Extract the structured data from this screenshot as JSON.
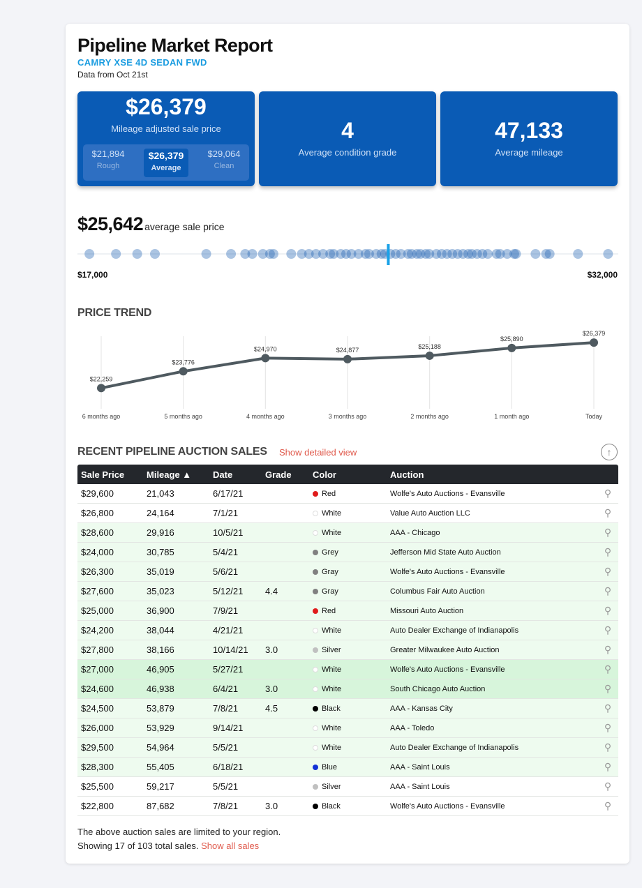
{
  "report": {
    "title": "Pipeline Market Report",
    "subtitle": "CAMRY XSE 4D SEDAN FWD",
    "data_from": "Data from Oct 21st"
  },
  "kpis": {
    "sale_price": "$26,379",
    "sale_price_label": "Mileage adjusted sale price",
    "range": [
      {
        "value": "$21,894",
        "label": "Rough"
      },
      {
        "value": "$26,379",
        "label": "Average"
      },
      {
        "value": "$29,064",
        "label": "Clean"
      }
    ],
    "condition": "4",
    "condition_label": "Average condition grade",
    "mileage": "47,133",
    "mileage_label": "Average mileage"
  },
  "distribution": {
    "avg_price": "$25,642",
    "avg_label": "average sale price",
    "min_label": "$17,000",
    "max_label": "$32,000",
    "min": 17000,
    "max": 32000,
    "average": 25642,
    "points": [
      17200,
      17950,
      18550,
      19050,
      20500,
      21200,
      21600,
      21800,
      22100,
      22300,
      22400,
      22900,
      23200,
      23400,
      23600,
      23800,
      24000,
      24100,
      24300,
      24450,
      24600,
      24800,
      25000,
      25100,
      25300,
      25450,
      25550,
      25700,
      25850,
      26000,
      26200,
      26300,
      26450,
      26550,
      26700,
      26800,
      27000,
      27150,
      27300,
      27450,
      27600,
      27750,
      27900,
      28000,
      28150,
      28300,
      28450,
      28700,
      28800,
      29000,
      29200,
      29250,
      29800,
      30100,
      30200,
      31000,
      31850
    ]
  },
  "trend": {
    "heading": "PRICE TREND",
    "chart_data": {
      "type": "line",
      "categories": [
        "6 months ago",
        "5 months ago",
        "4 months ago",
        "3 months ago",
        "2 months ago",
        "1 month ago",
        "Today"
      ],
      "values": [
        22259,
        23776,
        24970,
        24877,
        25188,
        25890,
        26379
      ],
      "labels": [
        "$22,259",
        "$23,776",
        "$24,970",
        "$24,877",
        "$25,188",
        "$25,890",
        "$26,379"
      ]
    }
  },
  "sales": {
    "heading": "RECENT PIPELINE AUCTION SALES",
    "detail_link": "Show detailed view",
    "columns": [
      "Sale Price",
      "Mileage ▲",
      "Date",
      "Grade",
      "Color",
      "Auction"
    ],
    "rows": [
      {
        "price": "$29,600",
        "mileage": "21,043",
        "date": "6/17/21",
        "grade": "",
        "color": "Red",
        "hex": "#e01b1b",
        "auction": "Wolfe's Auto Auctions - Evansville",
        "hl": ""
      },
      {
        "price": "$26,800",
        "mileage": "24,164",
        "date": "7/1/21",
        "grade": "",
        "color": "White",
        "hex": "#ffffff",
        "auction": "Value Auto Auction LLC",
        "hl": ""
      },
      {
        "price": "$28,600",
        "mileage": "29,916",
        "date": "10/5/21",
        "grade": "",
        "color": "White",
        "hex": "#ffffff",
        "auction": "AAA - Chicago",
        "hl": "g1"
      },
      {
        "price": "$24,000",
        "mileage": "30,785",
        "date": "5/4/21",
        "grade": "",
        "color": "Grey",
        "hex": "#808080",
        "auction": "Jefferson Mid State Auto Auction",
        "hl": "g1"
      },
      {
        "price": "$26,300",
        "mileage": "35,019",
        "date": "5/6/21",
        "grade": "",
        "color": "Gray",
        "hex": "#808080",
        "auction": "Wolfe's Auto Auctions - Evansville",
        "hl": "g1"
      },
      {
        "price": "$27,600",
        "mileage": "35,023",
        "date": "5/12/21",
        "grade": "4.4",
        "color": "Gray",
        "hex": "#808080",
        "auction": "Columbus Fair Auto Auction",
        "hl": "g1"
      },
      {
        "price": "$25,000",
        "mileage": "36,900",
        "date": "7/9/21",
        "grade": "",
        "color": "Red",
        "hex": "#e01b1b",
        "auction": "Missouri Auto Auction",
        "hl": "g1"
      },
      {
        "price": "$24,200",
        "mileage": "38,044",
        "date": "4/21/21",
        "grade": "",
        "color": "White",
        "hex": "#ffffff",
        "auction": "Auto Dealer Exchange of Indianapolis",
        "hl": "g1"
      },
      {
        "price": "$27,800",
        "mileage": "38,166",
        "date": "10/14/21",
        "grade": "3.0",
        "color": "Silver",
        "hex": "#c0c0c0",
        "auction": "Greater Milwaukee Auto Auction",
        "hl": "g1"
      },
      {
        "price": "$27,000",
        "mileage": "46,905",
        "date": "5/27/21",
        "grade": "",
        "color": "White",
        "hex": "#ffffff",
        "auction": "Wolfe's Auto Auctions - Evansville",
        "hl": "g2"
      },
      {
        "price": "$24,600",
        "mileage": "46,938",
        "date": "6/4/21",
        "grade": "3.0",
        "color": "White",
        "hex": "#ffffff",
        "auction": "South Chicago Auto Auction",
        "hl": "g2"
      },
      {
        "price": "$24,500",
        "mileage": "53,879",
        "date": "7/8/21",
        "grade": "4.5",
        "color": "Black",
        "hex": "#000000",
        "auction": "AAA - Kansas City",
        "hl": "g1"
      },
      {
        "price": "$26,000",
        "mileage": "53,929",
        "date": "9/14/21",
        "grade": "",
        "color": "White",
        "hex": "#ffffff",
        "auction": "AAA - Toledo",
        "hl": "g1"
      },
      {
        "price": "$29,500",
        "mileage": "54,964",
        "date": "5/5/21",
        "grade": "",
        "color": "White",
        "hex": "#ffffff",
        "auction": "Auto Dealer Exchange of Indianapolis",
        "hl": "g1"
      },
      {
        "price": "$28,300",
        "mileage": "55,405",
        "date": "6/18/21",
        "grade": "",
        "color": "Blue",
        "hex": "#1130d6",
        "auction": "AAA - Saint Louis",
        "hl": "g1"
      },
      {
        "price": "$25,500",
        "mileage": "59,217",
        "date": "5/5/21",
        "grade": "",
        "color": "Silver",
        "hex": "#c0c0c0",
        "auction": "AAA - Saint Louis",
        "hl": ""
      },
      {
        "price": "$22,800",
        "mileage": "87,682",
        "date": "7/8/21",
        "grade": "3.0",
        "color": "Black",
        "hex": "#000000",
        "auction": "Wolfe's Auto Auctions - Evansville",
        "hl": ""
      }
    ],
    "footer_note": "The above auction sales are limited to your region.",
    "footer_count": "Showing 17 of 103 total sales.",
    "footer_link": "Show all sales"
  }
}
